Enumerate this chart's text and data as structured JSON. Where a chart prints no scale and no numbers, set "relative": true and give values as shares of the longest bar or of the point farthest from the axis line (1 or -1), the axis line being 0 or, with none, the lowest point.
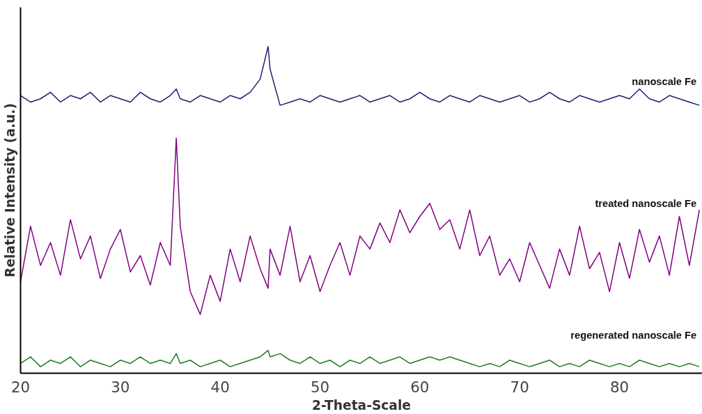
{
  "chart_data": {
    "type": "line",
    "relative": true,
    "xlabel": "2-Theta-Scale",
    "ylabel": "Relative Intensity (a.u.)",
    "xlim": [
      20,
      88.3
    ],
    "xticks": [
      20,
      30,
      40,
      50,
      60,
      70,
      80
    ],
    "grid": false,
    "marker": "none",
    "line_style": "solid",
    "x": [
      20,
      21,
      22,
      23,
      24,
      25,
      26,
      27,
      28,
      29,
      30,
      31,
      32,
      33,
      34,
      35,
      35.6,
      36,
      37,
      38,
      39,
      40,
      41,
      42,
      43,
      44,
      44.8,
      45,
      46,
      47,
      48,
      49,
      50,
      51,
      52,
      53,
      54,
      55,
      56,
      57,
      58,
      59,
      60,
      61,
      62,
      63,
      64,
      65,
      66,
      67,
      68,
      69,
      70,
      71,
      72,
      73,
      74,
      75,
      76,
      77,
      78,
      79,
      80,
      81,
      82,
      83,
      84,
      85,
      86,
      87,
      88
    ],
    "series": [
      {
        "name": "nanoscale Fe",
        "color": "#1f1f6e",
        "values": [
          0.85,
          0.83,
          0.84,
          0.86,
          0.83,
          0.85,
          0.84,
          0.86,
          0.83,
          0.85,
          0.84,
          0.83,
          0.86,
          0.84,
          0.83,
          0.85,
          0.87,
          0.84,
          0.83,
          0.85,
          0.84,
          0.83,
          0.85,
          0.84,
          0.86,
          0.9,
          1.0,
          0.93,
          0.82,
          0.83,
          0.84,
          0.83,
          0.85,
          0.84,
          0.83,
          0.84,
          0.85,
          0.83,
          0.84,
          0.85,
          0.83,
          0.84,
          0.86,
          0.84,
          0.83,
          0.85,
          0.84,
          0.83,
          0.85,
          0.84,
          0.83,
          0.84,
          0.85,
          0.83,
          0.84,
          0.86,
          0.84,
          0.83,
          0.85,
          0.84,
          0.83,
          0.84,
          0.85,
          0.84,
          0.87,
          0.84,
          0.83,
          0.85,
          0.84,
          0.83,
          0.82
        ]
      },
      {
        "name": "treated nanoscale Fe",
        "color": "#800080",
        "values": [
          0.28,
          0.45,
          0.33,
          0.4,
          0.3,
          0.47,
          0.35,
          0.42,
          0.29,
          0.38,
          0.44,
          0.31,
          0.36,
          0.27,
          0.4,
          0.33,
          0.72,
          0.45,
          0.25,
          0.18,
          0.3,
          0.22,
          0.38,
          0.28,
          0.42,
          0.32,
          0.26,
          0.38,
          0.3,
          0.45,
          0.28,
          0.36,
          0.25,
          0.33,
          0.4,
          0.3,
          0.42,
          0.38,
          0.46,
          0.4,
          0.5,
          0.43,
          0.48,
          0.52,
          0.44,
          0.47,
          0.38,
          0.5,
          0.36,
          0.42,
          0.3,
          0.35,
          0.28,
          0.4,
          0.33,
          0.26,
          0.38,
          0.3,
          0.45,
          0.32,
          0.37,
          0.25,
          0.4,
          0.29,
          0.44,
          0.34,
          0.42,
          0.3,
          0.48,
          0.33,
          0.5
        ]
      },
      {
        "name": "regenerated nanoscale Fe",
        "color": "#1e7d1e",
        "values": [
          0.03,
          0.05,
          0.02,
          0.04,
          0.03,
          0.05,
          0.02,
          0.04,
          0.03,
          0.02,
          0.04,
          0.03,
          0.05,
          0.03,
          0.04,
          0.03,
          0.06,
          0.03,
          0.04,
          0.02,
          0.03,
          0.04,
          0.02,
          0.03,
          0.04,
          0.05,
          0.07,
          0.05,
          0.06,
          0.04,
          0.03,
          0.05,
          0.03,
          0.04,
          0.02,
          0.04,
          0.03,
          0.05,
          0.03,
          0.04,
          0.05,
          0.03,
          0.04,
          0.05,
          0.04,
          0.05,
          0.04,
          0.03,
          0.02,
          0.03,
          0.02,
          0.04,
          0.03,
          0.02,
          0.03,
          0.04,
          0.02,
          0.03,
          0.02,
          0.04,
          0.03,
          0.02,
          0.03,
          0.02,
          0.04,
          0.03,
          0.02,
          0.03,
          0.02,
          0.03,
          0.02
        ]
      }
    ]
  }
}
